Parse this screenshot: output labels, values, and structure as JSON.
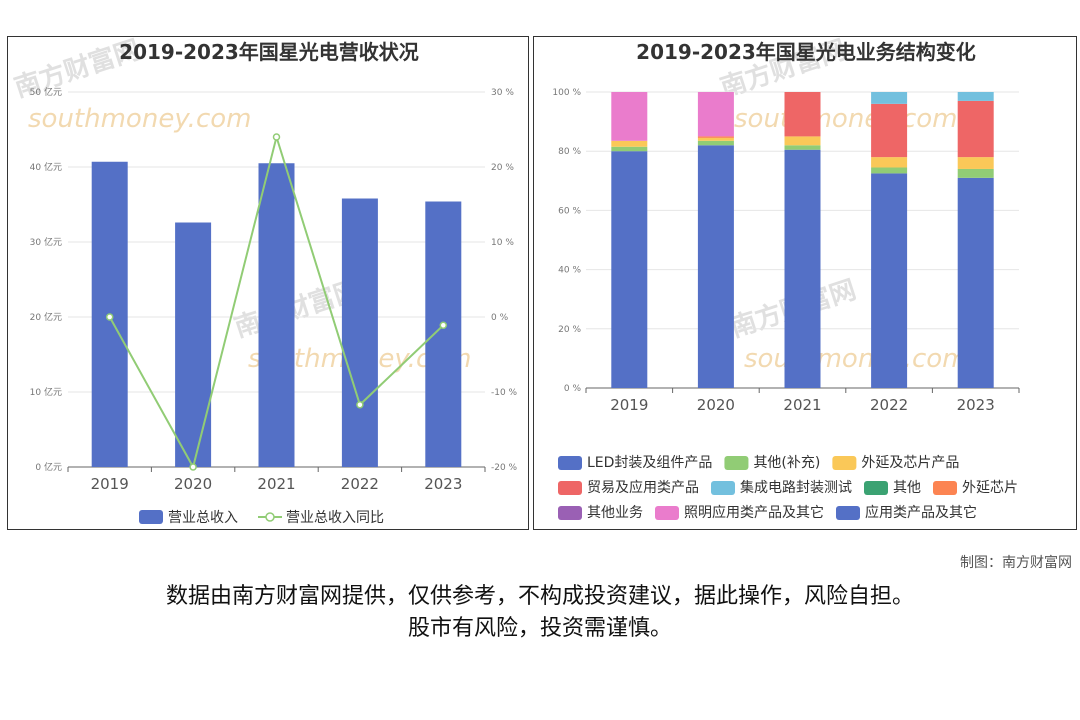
{
  "chart_data": [
    {
      "type": "bar",
      "title": "2019-2023年国星光电营收状况",
      "categories": [
        "2019",
        "2020",
        "2021",
        "2022",
        "2023"
      ],
      "series": [
        {
          "name": "营业总收入",
          "type": "bar",
          "axis": "left",
          "unit": "亿元",
          "values": [
            40.7,
            32.6,
            40.5,
            35.8,
            35.4
          ],
          "color": "#5470c6"
        },
        {
          "name": "营业总收入同比",
          "type": "line",
          "axis": "right",
          "unit": "%",
          "values": [
            0.0,
            -20.0,
            24.0,
            -11.7,
            -1.1
          ],
          "color": "#91cc75"
        }
      ],
      "y_left": {
        "ylim": [
          0,
          50
        ],
        "ticks": [
          0,
          10,
          20,
          30,
          40,
          50
        ],
        "tick_labels": [
          "0 亿元",
          "10 亿元",
          "20 亿元",
          "30 亿元",
          "40 亿元",
          "50 亿元"
        ]
      },
      "y_right": {
        "ylim": [
          -20,
          30
        ],
        "ticks": [
          -20,
          -10,
          0,
          10,
          20,
          30
        ],
        "tick_labels": [
          "-20 %",
          "-10 %",
          "0 %",
          "10 %",
          "20 %",
          "30 %"
        ]
      },
      "grid": true,
      "legend": "bottom"
    },
    {
      "type": "bar",
      "stacked": true,
      "title": "2019-2023年国星光电业务结构变化",
      "categories": [
        "2019",
        "2020",
        "2021",
        "2022",
        "2023"
      ],
      "series": [
        {
          "name": "LED封装及组件产品",
          "values": [
            80,
            82,
            80.5,
            72.5,
            71
          ],
          "color": "#5470c6"
        },
        {
          "name": "其他(补充)",
          "values": [
            1.5,
            1.5,
            1.5,
            2,
            3
          ],
          "color": "#91cc75"
        },
        {
          "name": "外延及芯片产品",
          "values": [
            2,
            1,
            3,
            3.5,
            4
          ],
          "color": "#fac858"
        },
        {
          "name": "贸易及应用类产品",
          "values": [
            0,
            0,
            15,
            18,
            19
          ],
          "color": "#ee6666"
        },
        {
          "name": "集成电路封装测试",
          "values": [
            0,
            0,
            0,
            4,
            3
          ],
          "color": "#73c0de"
        },
        {
          "name": "其他",
          "values": [
            0,
            0,
            0,
            0,
            0
          ],
          "color": "#3ba272"
        },
        {
          "name": "外延芯片",
          "values": [
            0,
            0.5,
            0,
            0,
            0
          ],
          "color": "#fc8452"
        },
        {
          "name": "其他业务",
          "values": [
            0,
            0,
            0,
            0,
            0
          ],
          "color": "#9a60b4"
        },
        {
          "name": "照明应用类产品及其它",
          "values": [
            16.5,
            15,
            0,
            0,
            0
          ],
          "color": "#ea7ccc"
        },
        {
          "name": "应用类产品及其它",
          "values": [
            0,
            0,
            0,
            0,
            0
          ],
          "color": "#5470c6"
        }
      ],
      "ylim": [
        0,
        100
      ],
      "ticks": [
        0,
        20,
        40,
        60,
        80,
        100
      ],
      "tick_labels": [
        "0 %",
        "20 %",
        "40 %",
        "60 %",
        "80 %",
        "100 %"
      ],
      "grid": true,
      "legend": "bottom"
    }
  ],
  "watermark": {
    "cn": "南方财富网",
    "en": "southmoney.com"
  },
  "credit": "制图：南方财富网",
  "disclaimer": [
    "数据由南方财富网提供，仅供参考，不构成投资建议，据此操作，风险自担。",
    "股市有风险，投资需谨慎。"
  ]
}
